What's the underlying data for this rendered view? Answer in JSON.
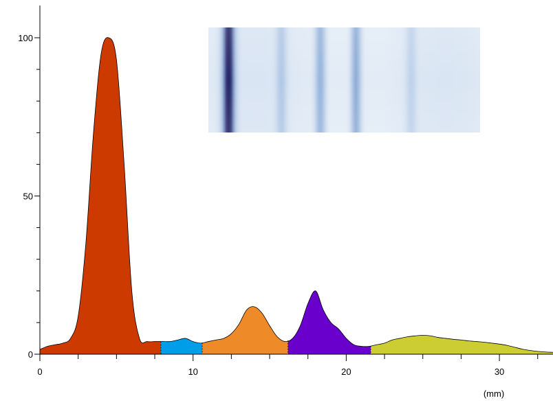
{
  "chart_data": {
    "type": "area",
    "xlabel": "(mm)",
    "ylabel": "",
    "xlim": [
      0,
      33.5
    ],
    "ylim": [
      0,
      110
    ],
    "x_major_ticks": [
      0,
      10,
      20,
      30
    ],
    "x_minor_ticks": [
      2.5,
      5,
      7.5,
      12.5,
      15,
      17.5,
      22.5,
      25,
      27.5,
      32.5
    ],
    "y_major_ticks": [
      0,
      50,
      100
    ],
    "y_minor_ticks": [
      10,
      20,
      30,
      40,
      60,
      70,
      80,
      90
    ],
    "grid": false,
    "legend": "none",
    "profile": {
      "x": [
        0,
        0.5,
        1,
        1.5,
        2,
        2.5,
        3,
        3.5,
        4,
        4.5,
        5,
        5.5,
        6,
        6.5,
        7,
        7.5,
        8,
        8.5,
        9,
        9.5,
        10,
        10.5,
        11,
        11.5,
        12,
        12.5,
        13,
        13.5,
        14,
        14.5,
        15,
        15.5,
        16,
        16.5,
        17,
        17.5,
        18,
        18.5,
        19,
        19.5,
        20,
        20.5,
        21,
        21.5,
        22,
        22.5,
        23,
        23.5,
        24,
        24.5,
        25,
        25.5,
        26,
        26.5,
        27,
        27.5,
        28,
        28.5,
        29,
        29.5,
        30,
        30.5,
        31,
        31.5,
        32,
        32.5,
        33,
        33.5
      ],
      "y": [
        1.5,
        2.5,
        3,
        3.5,
        5,
        12,
        35,
        70,
        95,
        100,
        93,
        60,
        20,
        5,
        4,
        4,
        4,
        4,
        4.5,
        5,
        4,
        3.5,
        4,
        4.5,
        5,
        6.5,
        9.5,
        14,
        15,
        13,
        9,
        5.5,
        4,
        5,
        9,
        16,
        20,
        14,
        10,
        8,
        5,
        3,
        2.5,
        2.5,
        3,
        3.5,
        4.5,
        5,
        5.5,
        5.8,
        6,
        5.8,
        5.3,
        5,
        4.7,
        4.5,
        4.2,
        4,
        3.8,
        3.5,
        3.2,
        2.8,
        2.2,
        1.6,
        1.2,
        0.9,
        0.7,
        0.6
      ]
    },
    "segments": [
      {
        "x_start": 0,
        "x_end": 7.9,
        "color": "#cc3a00"
      },
      {
        "x_start": 7.9,
        "x_end": 10.6,
        "color": "#009ee8"
      },
      {
        "x_start": 10.6,
        "x_end": 16.2,
        "color": "#ee8a28"
      },
      {
        "x_start": 16.2,
        "x_end": 21.6,
        "color": "#6a00cc"
      },
      {
        "x_start": 21.6,
        "x_end": 33.5,
        "color": "#cccc33"
      }
    ],
    "inset_gel": {
      "lane_x_range": [
        0,
        33.5
      ],
      "background_color": "#e3ecf6",
      "bands": [
        {
          "x": 2.5,
          "intensity": 1.0
        },
        {
          "x": 9.0,
          "intensity": 0.28
        },
        {
          "x": 13.8,
          "intensity": 0.5
        },
        {
          "x": 18.2,
          "intensity": 0.55
        },
        {
          "x": 25.0,
          "intensity": 0.2
        }
      ]
    }
  }
}
